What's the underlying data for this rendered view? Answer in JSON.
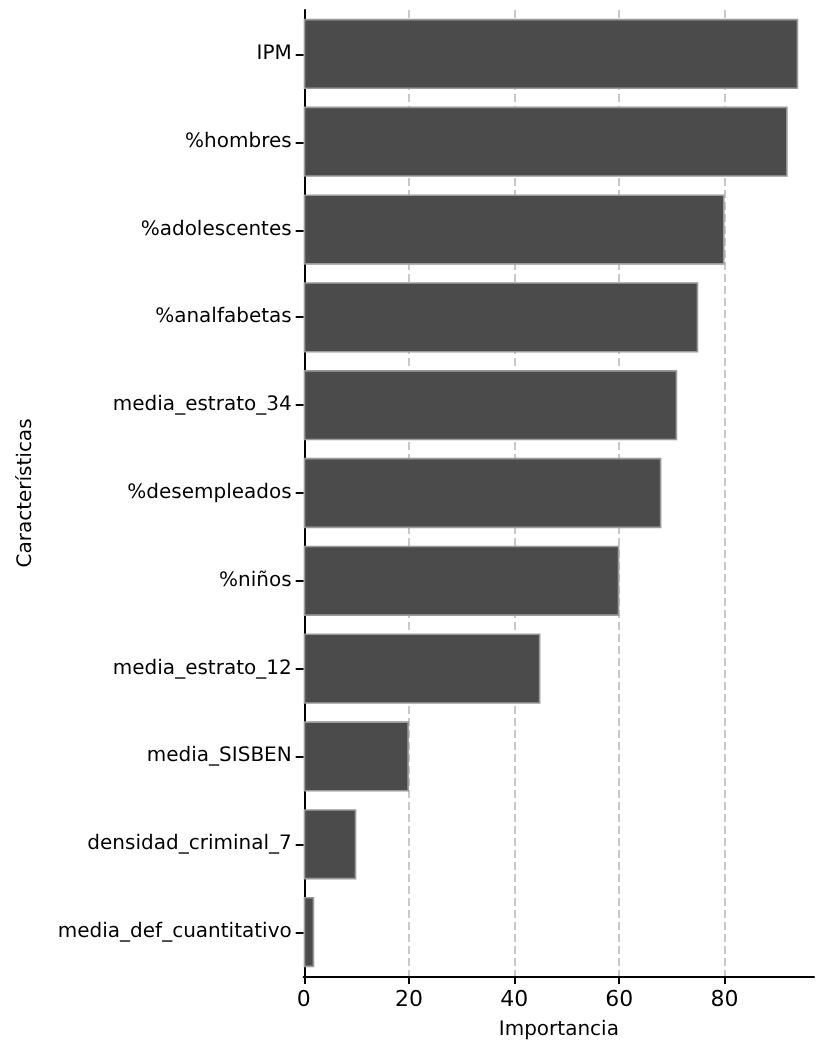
{
  "chart_data": {
    "type": "bar",
    "orientation": "horizontal",
    "xlabel": "Importancia",
    "ylabel": "Características",
    "categories": [
      "IPM",
      "%hombres",
      "%adolescentes",
      "%analfabetas",
      "media_estrato_34",
      "%desempleados",
      "%niños",
      "media_estrato_12",
      "media_SISBEN",
      "densidad_criminal_7",
      "media_def_cuantitativo"
    ],
    "values": [
      94,
      92,
      80,
      75,
      71,
      68,
      60,
      45,
      20,
      10,
      2
    ],
    "color": "#4b4b4b",
    "xlim": [
      0,
      97
    ],
    "xticks": [
      0,
      20,
      40,
      60,
      80
    ],
    "grid": "x"
  }
}
